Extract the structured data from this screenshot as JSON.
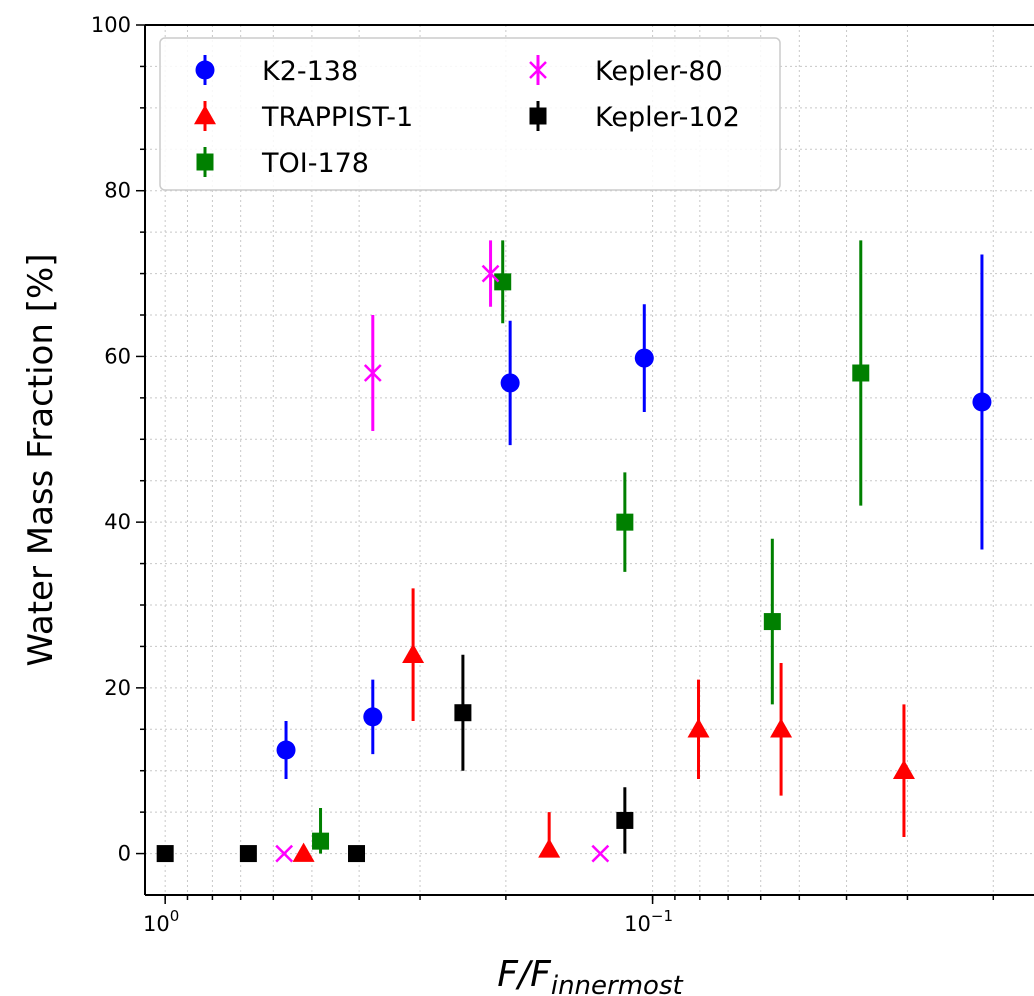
{
  "chart_data": {
    "type": "scatter",
    "xscale": "log",
    "xaxis_reversed": true,
    "xlim": [
      1.1,
      0.0165
    ],
    "ylim": [
      -5,
      100
    ],
    "xlabel_main": "F/F",
    "xlabel_sub": "innermost",
    "ylabel": "Water Mass Fraction [%]",
    "grid": true,
    "legend_position": "top-left",
    "x_ticks": [
      {
        "value": 1,
        "base": "10",
        "exp": "0"
      },
      {
        "value": 0.1,
        "base": "10",
        "exp": "−1"
      }
    ],
    "y_ticks": [
      0,
      20,
      40,
      60,
      80,
      100
    ],
    "series": [
      {
        "name": "K2-138",
        "marker": "circle",
        "color": "#0000ff",
        "points": [
          {
            "x": 0.565,
            "y": 12.5,
            "err": [
              3.5,
              3.5
            ]
          },
          {
            "x": 0.375,
            "y": 16.5,
            "err": [
              4.5,
              4.5
            ]
          },
          {
            "x": 0.196,
            "y": 56.8,
            "err": [
              7.5,
              7.5
            ]
          },
          {
            "x": 0.104,
            "y": 59.8,
            "err": [
              6.5,
              6.5
            ]
          },
          {
            "x": 0.0211,
            "y": 54.5,
            "err": [
              17.8,
              17.8
            ]
          }
        ]
      },
      {
        "name": "TRAPPIST-1",
        "marker": "triangle",
        "color": "#ff0000",
        "points": [
          {
            "x": 0.52,
            "y": 0,
            "err": [
              0,
              0
            ]
          },
          {
            "x": 0.31,
            "y": 24,
            "err": [
              8,
              8
            ]
          },
          {
            "x": 0.163,
            "y": 0.5,
            "err": [
              0,
              4.5
            ]
          },
          {
            "x": 0.0805,
            "y": 15,
            "err": [
              6,
              6
            ]
          },
          {
            "x": 0.0545,
            "y": 15,
            "err": [
              8,
              8
            ]
          },
          {
            "x": 0.0305,
            "y": 10,
            "err": [
              8,
              8
            ]
          }
        ]
      },
      {
        "name": "TOI-178",
        "marker": "square",
        "color": "#008000",
        "points": [
          {
            "x": 0.48,
            "y": 1.5,
            "err": [
              1.5,
              4
            ]
          },
          {
            "x": 0.203,
            "y": 69,
            "err": [
              5,
              5
            ]
          },
          {
            "x": 0.114,
            "y": 40,
            "err": [
              6,
              6
            ]
          },
          {
            "x": 0.0568,
            "y": 28,
            "err": [
              10,
              10
            ]
          },
          {
            "x": 0.0374,
            "y": 58,
            "err": [
              16,
              16
            ]
          }
        ]
      },
      {
        "name": "Kepler-80",
        "marker": "x",
        "color": "#ff00ff",
        "points": [
          {
            "x": 0.57,
            "y": 0,
            "err": [
              0,
              0
            ]
          },
          {
            "x": 0.375,
            "y": 58,
            "err": [
              7,
              7
            ]
          },
          {
            "x": 0.215,
            "y": 70,
            "err": [
              4,
              4
            ]
          },
          {
            "x": 0.128,
            "y": 0,
            "err": [
              0,
              0
            ]
          }
        ]
      },
      {
        "name": "Kepler-102",
        "marker": "square",
        "color": "#000000",
        "points": [
          {
            "x": 1.0,
            "y": 0,
            "err": [
              0,
              0
            ]
          },
          {
            "x": 0.675,
            "y": 0,
            "err": [
              0,
              0
            ]
          },
          {
            "x": 0.405,
            "y": 0,
            "err": [
              0,
              0
            ]
          },
          {
            "x": 0.245,
            "y": 17,
            "err": [
              7,
              7
            ]
          },
          {
            "x": 0.114,
            "y": 4,
            "err": [
              4,
              4
            ]
          }
        ]
      }
    ],
    "legend_columns": [
      [
        "K2-138",
        "TRAPPIST-1",
        "TOI-178"
      ],
      [
        "Kepler-80",
        "Kepler-102"
      ]
    ]
  }
}
